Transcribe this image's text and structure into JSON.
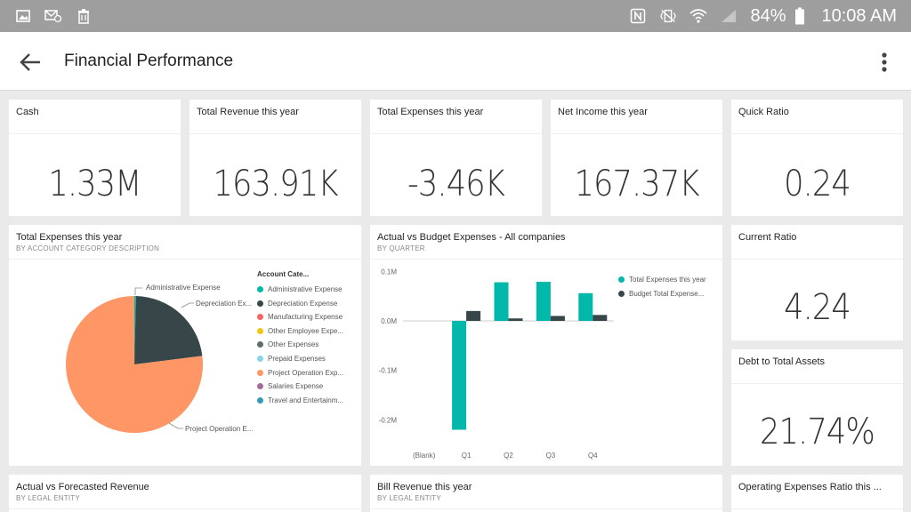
{
  "status_bar": {
    "left_icons": [
      "image-icon",
      "email-at-icon",
      "trash-icon"
    ],
    "right_icons": [
      "nfc-icon",
      "vibrate-icon",
      "wifi-icon",
      "signal-icon",
      "battery-icon"
    ],
    "battery": "84%",
    "time": "10:08 AM"
  },
  "app_bar": {
    "title": "Financial Performance"
  },
  "tiles": {
    "cash": {
      "title": "Cash",
      "value": "1.33M"
    },
    "total_revenue": {
      "title": "Total Revenue this year",
      "value": "163.91K"
    },
    "total_expenses_kpi": {
      "title": "Total Expenses this year",
      "value": "-3.46K"
    },
    "net_income": {
      "title": "Net Income this year",
      "value": "167.37K"
    },
    "quick_ratio": {
      "title": "Quick Ratio",
      "value": "0.24"
    },
    "current_ratio": {
      "title": "Current Ratio",
      "value": "4.24"
    },
    "debt_to_assets": {
      "title": "Debt to Total Assets",
      "value": "21.74%"
    },
    "pie": {
      "title": "Total Expenses this year",
      "subtitle": "BY ACCOUNT CATEGORY DESCRIPTION",
      "legend_title": "Account Cate...",
      "callouts": [
        "Administrative Expense",
        "Depreciation Ex...",
        "Project Operation E..."
      ]
    },
    "bar": {
      "title": "Actual vs Budget Expenses - All companies",
      "subtitle": "BY QUARTER"
    },
    "forecast": {
      "title": "Actual vs Forecasted Revenue",
      "subtitle": "BY LEGAL ENTITY"
    },
    "bill_revenue": {
      "title": "Bill Revenue this year",
      "subtitle": "BY LEGAL ENTITY"
    },
    "opex_ratio": {
      "title": "Operating Expenses Ratio this ..."
    }
  },
  "colors": {
    "teal": "#01b8aa",
    "dark": "#374649",
    "red": "#fd625e",
    "yellow": "#f2c80f",
    "gray": "#5f6b6d",
    "light_blue": "#8ad4eb",
    "orange": "#fe9666",
    "purple": "#a66999",
    "blue": "#3599b8"
  },
  "chart_data": [
    {
      "type": "pie",
      "title": "Total Expenses this year",
      "subtitle": "BY ACCOUNT CATEGORY DESCRIPTION",
      "legend_title": "Account Cate...",
      "legend_position": "right",
      "slices": [
        {
          "label": "Administrative Expense",
          "value": 0.4,
          "color": "#01b8aa"
        },
        {
          "label": "Depreciation Expense",
          "value": 22.6,
          "color": "#374649"
        },
        {
          "label": "Manufacturing Expense",
          "value": 0,
          "color": "#fd625e"
        },
        {
          "label": "Other Employee Expe...",
          "value": 0,
          "color": "#f2c80f"
        },
        {
          "label": "Other Expenses",
          "value": 0,
          "color": "#5f6b6d"
        },
        {
          "label": "Prepaid Expenses",
          "value": 0,
          "color": "#8ad4eb"
        },
        {
          "label": "Project Operation Exp...",
          "value": 77.0,
          "color": "#fe9666"
        },
        {
          "label": "Salaries Expense",
          "value": 0,
          "color": "#a66999"
        },
        {
          "label": "Travel and Entertainm...",
          "value": 0,
          "color": "#3599b8"
        }
      ]
    },
    {
      "type": "bar",
      "title": "Actual vs Budget Expenses - All companies",
      "subtitle": "BY QUARTER",
      "categories": [
        "(Blank)",
        "Q1",
        "Q2",
        "Q3",
        "Q4"
      ],
      "series": [
        {
          "name": "Total Expenses this year",
          "color": "#01b8aa",
          "values": [
            0,
            -0.22,
            0.078,
            0.079,
            0.056
          ]
        },
        {
          "name": "Budget Total Expense...",
          "color": "#374649",
          "values": [
            0,
            0.02,
            0.005,
            0.01,
            0.012
          ]
        }
      ],
      "yticks": [
        "0.1M",
        "0.0M",
        "-0.1M",
        "-0.2M"
      ],
      "ytick_values": [
        0.1,
        0.0,
        -0.1,
        -0.2
      ],
      "ylim": [
        -0.24,
        0.12
      ],
      "grid": false,
      "legend_position": "right"
    }
  ]
}
